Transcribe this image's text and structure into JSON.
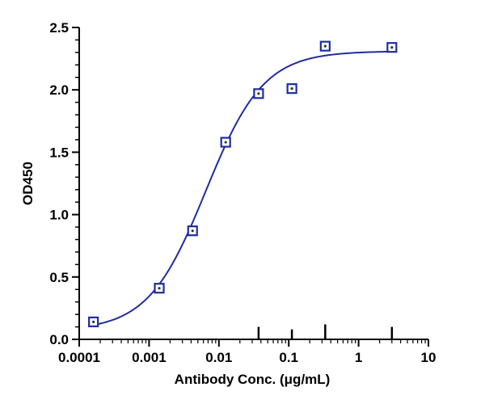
{
  "chart_data": {
    "type": "scatter",
    "title": "",
    "xlabel": "Antibody Conc. (μg/mL)",
    "ylabel": "OD450",
    "x_scale": "log",
    "xlim": [
      0.0001,
      10
    ],
    "ylim": [
      0,
      2.5
    ],
    "x_ticks": [
      "0.0001",
      "0.001",
      "0.01",
      "0.1",
      "1",
      "10"
    ],
    "y_ticks": [
      "0.0",
      "0.5",
      "1.0",
      "1.5",
      "2.0",
      "2.5"
    ],
    "grid": false,
    "legend": "none",
    "series": [
      {
        "x": [
          0.00016,
          0.0014,
          0.0042,
          0.0125,
          0.037,
          0.111,
          0.333,
          3.0
        ],
        "y": [
          0.14,
          0.41,
          0.87,
          1.58,
          1.97,
          2.01,
          2.35,
          2.34
        ],
        "fit": {
          "model": "4PL",
          "bottom": 0.07,
          "top": 2.31,
          "ec50": 0.0065,
          "hill": 1.05
        }
      }
    ],
    "error_bars": [
      {
        "x": 0.037,
        "y": 0.1
      },
      {
        "x": 0.111,
        "y": 0.08
      },
      {
        "x": 0.333,
        "y": 0.12
      },
      {
        "x": 3.0,
        "y": 0.1
      }
    ],
    "colors": {
      "series": "#1f2d9e",
      "axis": "#000000"
    }
  }
}
